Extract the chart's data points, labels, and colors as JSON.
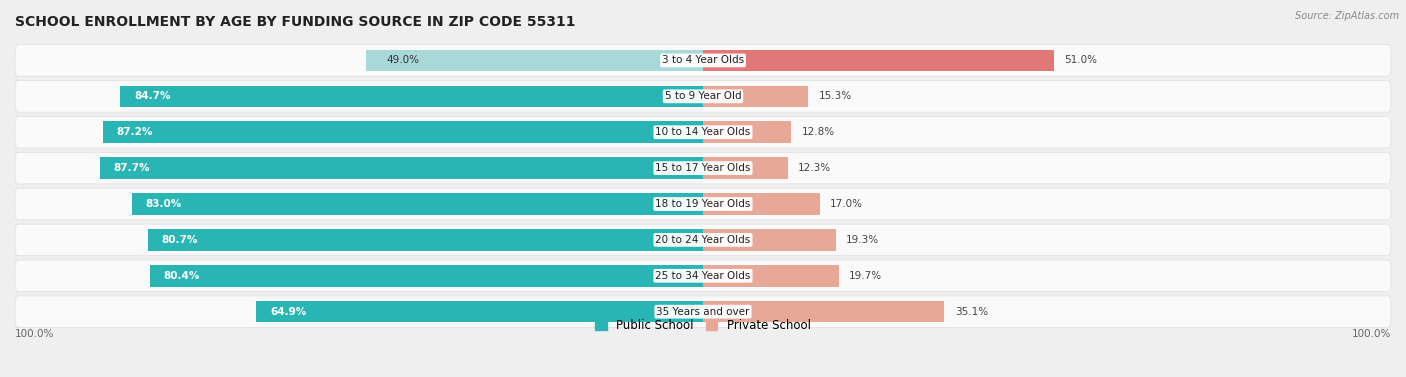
{
  "title": "SCHOOL ENROLLMENT BY AGE BY FUNDING SOURCE IN ZIP CODE 55311",
  "source": "Source: ZipAtlas.com",
  "categories": [
    "3 to 4 Year Olds",
    "5 to 9 Year Old",
    "10 to 14 Year Olds",
    "15 to 17 Year Olds",
    "18 to 19 Year Olds",
    "20 to 24 Year Olds",
    "25 to 34 Year Olds",
    "35 Years and over"
  ],
  "public_values": [
    49.0,
    84.7,
    87.2,
    87.7,
    83.0,
    80.7,
    80.4,
    64.9
  ],
  "private_values": [
    51.0,
    15.3,
    12.8,
    12.3,
    17.0,
    19.3,
    19.7,
    35.1
  ],
  "public_color_3to4": "#a8d8d8",
  "public_color_rest": "#2ab5b5",
  "private_color_3to4": "#e07878",
  "private_color_rest": "#e8a898",
  "bg_color": "#efefef",
  "row_bg": "#fafafa",
  "title_fontsize": 10,
  "bar_height": 0.6,
  "legend_public": "Public School",
  "legend_private": "Private School"
}
